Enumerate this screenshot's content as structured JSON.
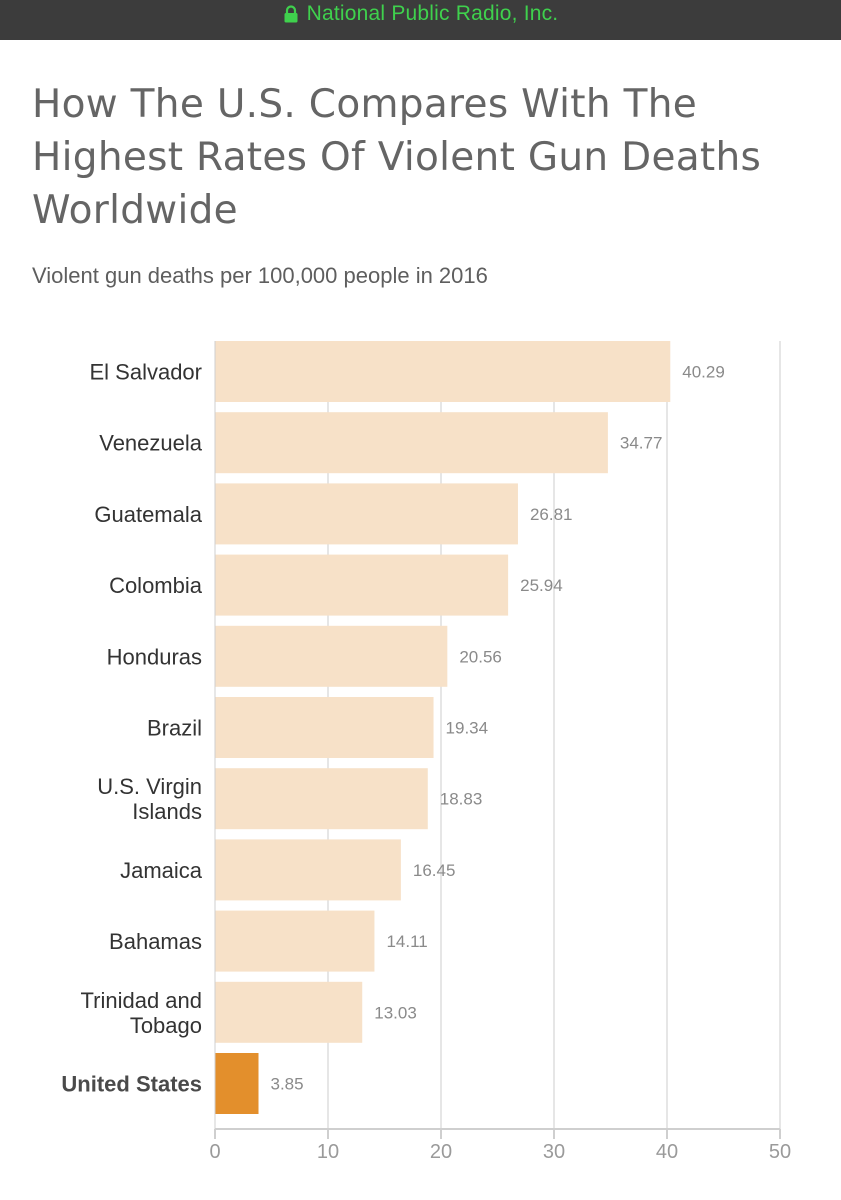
{
  "header": {
    "site_name": "National Public Radio, Inc.",
    "lock_icon": "lock-icon",
    "bar_color": "#3c3c3c",
    "text_color": "#3fd14d"
  },
  "title": "How The U.S. Compares With The Highest Rates Of Violent Gun Deaths Worldwide",
  "subtitle": "Violent gun deaths per 100,000 people in 2016",
  "chart_data": {
    "type": "bar",
    "orientation": "horizontal",
    "title": "How The U.S. Compares With The Highest Rates Of Violent Gun Deaths Worldwide",
    "subtitle": "Violent gun deaths per 100,000 people in 2016",
    "categories": [
      [
        "El Salvador"
      ],
      [
        "Venezuela"
      ],
      [
        "Guatemala"
      ],
      [
        "Colombia"
      ],
      [
        "Honduras"
      ],
      [
        "Brazil"
      ],
      [
        "U.S. Virgin",
        "Islands"
      ],
      [
        "Jamaica"
      ],
      [
        "Bahamas"
      ],
      [
        "Trinidad and",
        "Tobago"
      ],
      [
        "United States"
      ]
    ],
    "values": [
      40.29,
      34.77,
      26.81,
      25.94,
      20.56,
      19.34,
      18.83,
      16.45,
      14.11,
      13.03,
      3.85
    ],
    "value_labels": [
      "40.29",
      "34.77",
      "26.81",
      "25.94",
      "20.56",
      "19.34",
      "18.83",
      "16.45",
      "14.11",
      "13.03",
      "3.85"
    ],
    "highlight_index": 10,
    "bar_color": "#f7e1c8",
    "highlight_color": "#e38f2c",
    "xlim": [
      0,
      50
    ],
    "xticks": [
      0,
      10,
      20,
      30,
      40,
      50
    ],
    "grid": true,
    "xlabel": "",
    "ylabel": ""
  }
}
